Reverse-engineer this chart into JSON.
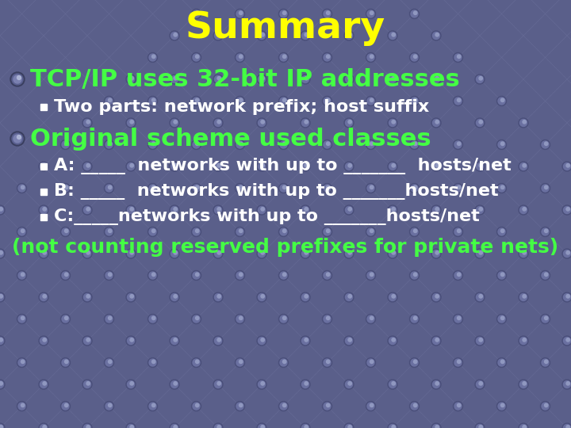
{
  "title": "Summary",
  "title_color": "#FFFF00",
  "title_fontsize": 34,
  "bg_color": "#5a5f8a",
  "bullet1_text": "TCP/IP uses 32-bit IP addresses",
  "bullet1_color": "#44ff44",
  "bullet1_fontsize": 22,
  "sub1_text": "Two parts: network prefix; host suffix",
  "sub1_color": "#ffffff",
  "sub1_fontsize": 16,
  "bullet2_text": "Original scheme used classes",
  "bullet2_color": "#44ff44",
  "bullet2_fontsize": 22,
  "sub2a_text": "A: _____  networks with up to _______  hosts/net",
  "sub2b_text": "B: _____  networks with up to _______hosts/net",
  "sub2c_text": "C:_____networks with up to _______hosts/net",
  "sub2_color": "#ffffff",
  "sub2_fontsize": 16,
  "footer_text": "(not counting reserved prefixes for private nets)",
  "footer_color": "#44ff44",
  "footer_fontsize": 18,
  "grid_line_color": "#6a6f9a",
  "grid_dot_outer": "#4a4f7a",
  "grid_dot_mid": "#6a70a0",
  "grid_dot_inner": "#9098c0"
}
